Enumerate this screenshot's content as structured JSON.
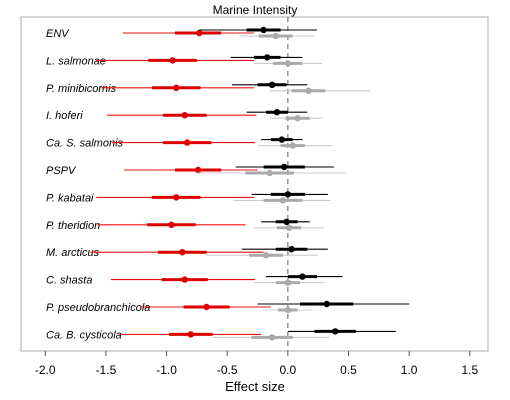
{
  "chart_data": {
    "type": "forest",
    "title": "Marine Intensity",
    "xlabel": "Effect size",
    "ylabel": "",
    "xlim": [
      -2.2,
      1.65
    ],
    "xticks": [
      -2.0,
      -1.5,
      -1.0,
      -0.5,
      0.0,
      0.5,
      1.0,
      1.5
    ],
    "xtick_labels": [
      "-2.0",
      "-1.5",
      "-1.0",
      "-0.5",
      "0.0",
      "0.5",
      "1.0",
      "1.5"
    ],
    "reference_line": 0.0,
    "categories": [
      "ENV",
      "L. salmonae",
      "P. minibicornis",
      "I. hoferi",
      "Ca. S. salmonis",
      "PSPV",
      "P. kabatai",
      "P. theridion",
      "M. arcticus",
      "C. shasta",
      "P. pseudobranchicola",
      "Ca. B. cysticola"
    ],
    "series": [
      {
        "name": "red",
        "color": "#ee1111",
        "point_color": "#dd0000",
        "estimates": [
          -0.73,
          -0.95,
          -0.92,
          -0.85,
          -0.83,
          -0.74,
          -0.92,
          -0.96,
          -0.87,
          -0.85,
          -0.67,
          -0.8
        ],
        "inner_ci": [
          [
            -0.93,
            -0.55
          ],
          [
            -1.15,
            -0.75
          ],
          [
            -1.12,
            -0.72
          ],
          [
            -1.03,
            -0.67
          ],
          [
            -1.03,
            -0.63
          ],
          [
            -0.93,
            -0.55
          ],
          [
            -1.12,
            -0.72
          ],
          [
            -1.16,
            -0.76
          ],
          [
            -1.07,
            -0.67
          ],
          [
            -1.04,
            -0.66
          ],
          [
            -0.86,
            -0.48
          ],
          [
            -0.98,
            -0.62
          ]
        ],
        "outer_ci": [
          [
            -1.36,
            -0.28
          ],
          [
            -1.58,
            -0.28
          ],
          [
            -1.54,
            -0.28
          ],
          [
            -1.49,
            -0.26
          ],
          [
            -1.45,
            -0.27
          ],
          [
            -1.35,
            -0.25
          ],
          [
            -1.58,
            -0.28
          ],
          [
            -1.57,
            -0.35
          ],
          [
            -1.63,
            -0.2
          ],
          [
            -1.46,
            -0.27
          ],
          [
            -1.21,
            -0.14
          ],
          [
            -1.39,
            -0.22
          ]
        ]
      },
      {
        "name": "gray",
        "color": "#cccccc",
        "point_color": "#aaaaaa",
        "estimates": [
          -0.1,
          0.0,
          0.17,
          0.08,
          0.04,
          -0.15,
          -0.04,
          0.01,
          -0.18,
          0.0,
          0.0,
          -0.13
        ],
        "inner_ci": [
          [
            -0.24,
            0.04
          ],
          [
            -0.12,
            0.12
          ],
          [
            0.03,
            0.31
          ],
          [
            -0.02,
            0.18
          ],
          [
            -0.06,
            0.14
          ],
          [
            -0.35,
            0.05
          ],
          [
            -0.2,
            0.12
          ],
          [
            -0.09,
            0.11
          ],
          [
            -0.32,
            -0.04
          ],
          [
            -0.1,
            0.1
          ],
          [
            -0.08,
            0.08
          ],
          [
            -0.3,
            0.04
          ]
        ],
        "outer_ci": [
          [
            -0.4,
            0.22
          ],
          [
            -0.28,
            0.28
          ],
          [
            -0.15,
            0.68
          ],
          [
            -0.15,
            0.28
          ],
          [
            -0.25,
            0.36
          ],
          [
            -0.75,
            0.48
          ],
          [
            -0.45,
            0.35
          ],
          [
            -0.28,
            0.3
          ],
          [
            -0.68,
            0.25
          ],
          [
            -0.28,
            0.3
          ],
          [
            -0.2,
            0.2
          ],
          [
            -0.62,
            0.34
          ]
        ]
      },
      {
        "name": "black",
        "color": "#000000",
        "point_color": "#000000",
        "estimates": [
          -0.2,
          -0.17,
          -0.13,
          -0.09,
          -0.05,
          -0.03,
          0.0,
          -0.01,
          0.03,
          0.12,
          0.32,
          0.39
        ],
        "inner_ci": [
          [
            -0.34,
            -0.06
          ],
          [
            -0.28,
            -0.06
          ],
          [
            -0.25,
            -0.01
          ],
          [
            -0.18,
            0.0
          ],
          [
            -0.14,
            0.04
          ],
          [
            -0.2,
            0.14
          ],
          [
            -0.14,
            0.14
          ],
          [
            -0.1,
            0.08
          ],
          [
            -0.1,
            0.16
          ],
          [
            0.0,
            0.24
          ],
          [
            0.1,
            0.54
          ],
          [
            0.22,
            0.56
          ]
        ],
        "outer_ci": [
          [
            -0.73,
            0.24
          ],
          [
            -0.47,
            0.12
          ],
          [
            -0.46,
            0.16
          ],
          [
            -0.34,
            0.16
          ],
          [
            -0.22,
            0.12
          ],
          [
            -0.43,
            0.38
          ],
          [
            -0.3,
            0.33
          ],
          [
            -0.22,
            0.18
          ],
          [
            -0.38,
            0.33
          ],
          [
            -0.18,
            0.45
          ],
          [
            -0.25,
            1.0
          ],
          [
            0.0,
            0.89
          ]
        ]
      }
    ],
    "grid": false,
    "legend": "none"
  }
}
